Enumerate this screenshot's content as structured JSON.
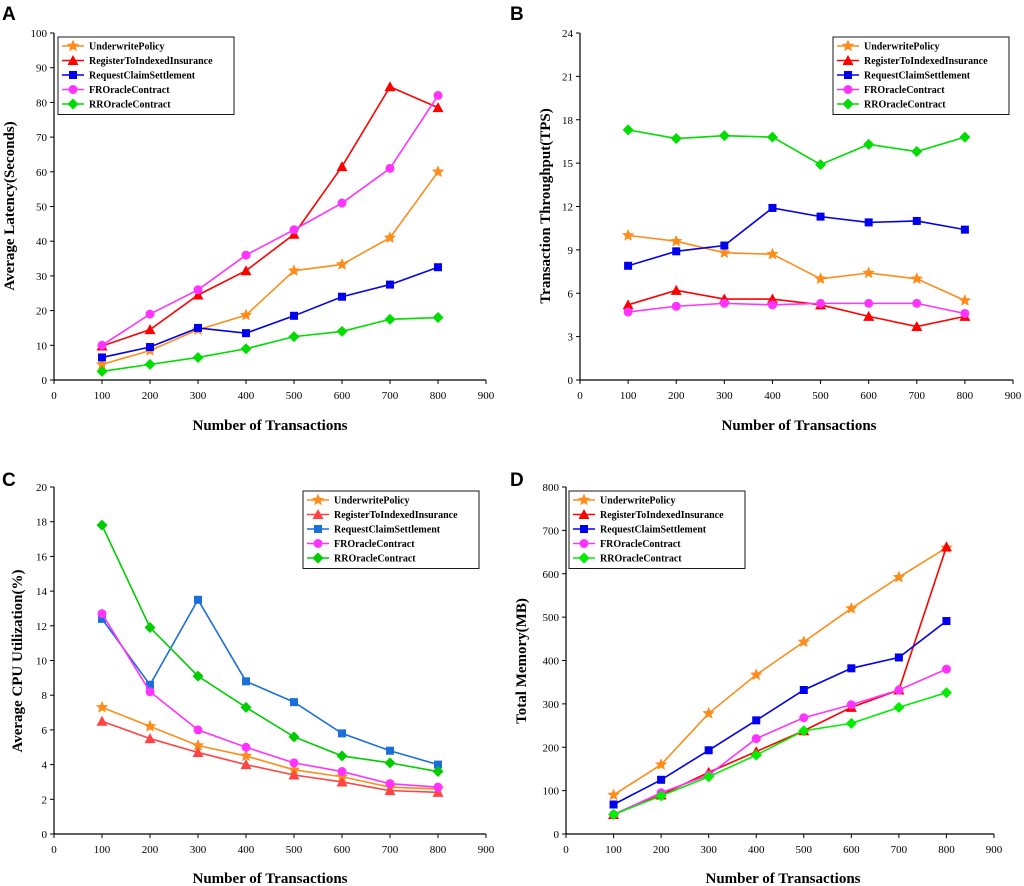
{
  "chart_data": [
    {
      "panel": "A",
      "type": "line",
      "title": "",
      "xlabel": "Number of Transactions",
      "ylabel": "Average Latency(Seconds)",
      "xlim": [
        0,
        900
      ],
      "ylim": [
        0,
        100
      ],
      "xticks": [
        0,
        100,
        200,
        300,
        400,
        500,
        600,
        700,
        800,
        900
      ],
      "yticks": [
        0,
        10,
        20,
        30,
        40,
        50,
        60,
        70,
        80,
        90,
        100
      ],
      "legend": "top-left",
      "x": [
        100,
        200,
        300,
        400,
        500,
        600,
        700,
        800
      ],
      "series": [
        {
          "name": "UnderwritePolicy",
          "color": "#ff8c1a",
          "marker": "star",
          "values": [
            4.5,
            8.5,
            14.5,
            18.7,
            31.5,
            33.3,
            41,
            60
          ]
        },
        {
          "name": "RegisterToIndexedInsurance",
          "color": "#ff0000",
          "marker": "triangle",
          "values": [
            9.8,
            14.5,
            24.5,
            31.5,
            42,
            61.5,
            84.5,
            78.5
          ]
        },
        {
          "name": "RequestClaimSettlement",
          "color": "#0000ee",
          "marker": "square",
          "values": [
            6.5,
            9.5,
            15,
            13.5,
            18.5,
            24,
            27.5,
            32.5
          ]
        },
        {
          "name": "FROracleContract",
          "color": "#ff33ff",
          "marker": "circle",
          "values": [
            10,
            19,
            26,
            36,
            43.3,
            51,
            61,
            82
          ]
        },
        {
          "name": "RROracleContract",
          "color": "#00dd00",
          "marker": "diamond",
          "values": [
            2.5,
            4.5,
            6.5,
            9,
            12.5,
            14,
            17.5,
            18
          ]
        }
      ]
    },
    {
      "panel": "B",
      "type": "line",
      "title": "",
      "xlabel": "Number of Transactions",
      "ylabel": "Transaction Throughput(TPS)",
      "xlim": [
        0,
        900
      ],
      "ylim": [
        0,
        24
      ],
      "xticks": [
        0,
        100,
        200,
        300,
        400,
        500,
        600,
        700,
        800,
        900
      ],
      "yticks": [
        0,
        3,
        6,
        9,
        12,
        15,
        18,
        21,
        24
      ],
      "legend": "top-right",
      "x": [
        100,
        200,
        300,
        400,
        500,
        600,
        700,
        800
      ],
      "series": [
        {
          "name": "UnderwritePolicy",
          "color": "#ff8c1a",
          "marker": "star",
          "values": [
            10,
            9.6,
            8.8,
            8.7,
            7,
            7.4,
            7,
            5.5
          ]
        },
        {
          "name": "RegisterToIndexedInsurance",
          "color": "#ff0000",
          "marker": "triangle",
          "values": [
            5.2,
            6.2,
            5.6,
            5.6,
            5.2,
            4.4,
            3.7,
            4.4
          ]
        },
        {
          "name": "RequestClaimSettlement",
          "color": "#0000ee",
          "marker": "square",
          "values": [
            7.9,
            8.9,
            9.3,
            11.9,
            11.3,
            10.9,
            11,
            10.4
          ]
        },
        {
          "name": "FROracleContract",
          "color": "#ff33ff",
          "marker": "circle",
          "values": [
            4.7,
            5.1,
            5.3,
            5.2,
            5.3,
            5.3,
            5.3,
            4.6
          ]
        },
        {
          "name": "RROracleContract",
          "color": "#00dd00",
          "marker": "diamond",
          "values": [
            17.3,
            16.7,
            16.9,
            16.8,
            14.9,
            16.3,
            15.8,
            16.8
          ]
        }
      ]
    },
    {
      "panel": "C",
      "type": "line",
      "title": "",
      "xlabel": "Number of Transactions",
      "ylabel": "Average CPU Utilization(%)",
      "xlim": [
        0,
        900
      ],
      "ylim": [
        0,
        20
      ],
      "xticks": [
        0,
        100,
        200,
        300,
        400,
        500,
        600,
        700,
        800,
        900
      ],
      "yticks": [
        0,
        2,
        4,
        6,
        8,
        10,
        12,
        14,
        16,
        18,
        20
      ],
      "legend": "top-right",
      "x": [
        100,
        200,
        300,
        400,
        500,
        600,
        700,
        800
      ],
      "series": [
        {
          "name": "UnderwritePolicy",
          "color": "#ff8c1a",
          "marker": "star",
          "values": [
            7.3,
            6.2,
            5.1,
            4.5,
            3.7,
            3.3,
            2.7,
            2.6
          ]
        },
        {
          "name": "RegisterToIndexedInsurance",
          "color": "#ff4444",
          "marker": "triangle",
          "values": [
            6.5,
            5.5,
            4.7,
            4,
            3.4,
            3,
            2.5,
            2.4
          ]
        },
        {
          "name": "RequestClaimSettlement",
          "color": "#1a6fd8",
          "marker": "square",
          "values": [
            12.4,
            8.6,
            13.5,
            8.8,
            7.6,
            5.8,
            4.8,
            4
          ]
        },
        {
          "name": "FROracleContract",
          "color": "#ff33ff",
          "marker": "circle",
          "values": [
            12.7,
            8.2,
            6,
            5,
            4.1,
            3.6,
            2.9,
            2.7
          ]
        },
        {
          "name": "RROracleContract",
          "color": "#00cc00",
          "marker": "diamond",
          "values": [
            17.8,
            11.9,
            9.1,
            7.3,
            5.6,
            4.5,
            4.1,
            3.6
          ]
        }
      ]
    },
    {
      "panel": "D",
      "type": "line",
      "title": "",
      "xlabel": "Number of Transactions",
      "ylabel": "Total Memory(MB)",
      "xlim": [
        0,
        900
      ],
      "ylim": [
        0,
        800
      ],
      "xticks": [
        0,
        100,
        200,
        300,
        400,
        500,
        600,
        700,
        800,
        900
      ],
      "yticks": [
        0,
        100,
        200,
        300,
        400,
        500,
        600,
        700,
        800
      ],
      "legend": "top-left",
      "x": [
        100,
        200,
        300,
        400,
        500,
        600,
        700,
        800
      ],
      "series": [
        {
          "name": "UnderwritePolicy",
          "color": "#ff8c1a",
          "marker": "star",
          "values": [
            90,
            160,
            278,
            367,
            443,
            520,
            592,
            660
          ]
        },
        {
          "name": "RegisterToIndexedInsurance",
          "color": "#ff0000",
          "marker": "triangle",
          "values": [
            45,
            90,
            142,
            190,
            238,
            292,
            332,
            662
          ]
        },
        {
          "name": "RequestClaimSettlement",
          "color": "#0000ee",
          "marker": "square",
          "values": [
            68,
            125,
            193,
            262,
            332,
            382,
            407,
            491
          ]
        },
        {
          "name": "FROracleContract",
          "color": "#ff33ff",
          "marker": "circle",
          "values": [
            45,
            95,
            136,
            220,
            268,
            298,
            332,
            380
          ]
        },
        {
          "name": "RROracleContract",
          "color": "#00ee00",
          "marker": "diamond",
          "values": [
            45,
            88,
            132,
            182,
            238,
            255,
            292,
            326
          ]
        }
      ]
    }
  ]
}
